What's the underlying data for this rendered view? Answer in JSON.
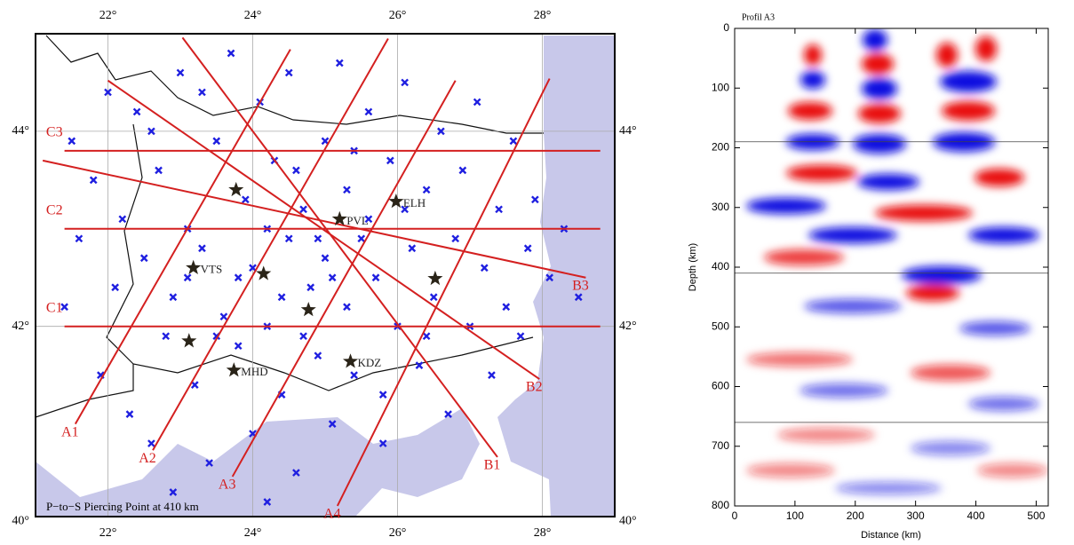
{
  "chart_data": [
    {
      "type": "map",
      "annotation": "P−to−S Piercing Point at 410 km",
      "xlim": [
        21,
        29
      ],
      "ylim": [
        40.05,
        45.0
      ],
      "xticks": [
        {
          "value": 22,
          "label": "22°"
        },
        {
          "value": 24,
          "label": "24°"
        },
        {
          "value": 26,
          "label": "26°"
        },
        {
          "value": 28,
          "label": "28°"
        }
      ],
      "yticks": [
        {
          "value": 40,
          "label": "40°"
        },
        {
          "value": 42,
          "label": "42°"
        },
        {
          "value": 44,
          "label": "44°"
        }
      ],
      "grid": true,
      "points": {
        "color": "#1f1fe0",
        "lon": [
          21.4,
          21.6,
          21.8,
          21.9,
          22.1,
          22.2,
          22.3,
          22.4,
          22.5,
          22.6,
          22.7,
          22.8,
          22.9,
          23.0,
          23.1,
          23.2,
          23.3,
          23.4,
          23.5,
          23.6,
          23.7,
          23.8,
          23.9,
          24.0,
          24.0,
          24.1,
          24.2,
          24.3,
          24.4,
          24.5,
          24.5,
          24.6,
          24.7,
          24.8,
          24.9,
          25.0,
          25.0,
          25.1,
          25.2,
          25.3,
          25.3,
          25.4,
          25.5,
          25.6,
          25.7,
          25.8,
          25.9,
          26.0,
          26.1,
          26.2,
          26.3,
          26.4,
          26.5,
          26.6,
          26.7,
          26.8,
          26.9,
          27.0,
          27.1,
          27.2,
          27.3,
          27.4,
          27.5,
          27.6,
          27.7,
          27.8,
          27.9,
          28.1,
          28.3,
          28.5,
          21.5,
          22.0,
          22.6,
          23.3,
          24.6,
          25.4,
          24.2,
          24.9,
          25.6,
          24.4,
          25.1,
          23.8,
          26.1,
          24.7,
          23.5,
          22.9,
          24.2,
          26.4,
          25.8,
          23.1
        ],
        "lat": [
          42.2,
          42.9,
          43.5,
          41.5,
          42.4,
          43.1,
          41.1,
          44.2,
          42.7,
          40.8,
          43.6,
          41.9,
          42.3,
          44.6,
          43.0,
          41.4,
          42.8,
          40.6,
          43.9,
          42.1,
          44.8,
          41.8,
          43.3,
          42.6,
          40.9,
          44.3,
          42.0,
          43.7,
          41.3,
          42.9,
          44.6,
          40.5,
          43.2,
          42.4,
          41.7,
          43.9,
          42.7,
          41.0,
          44.7,
          42.2,
          43.4,
          41.5,
          42.9,
          44.2,
          42.5,
          40.8,
          43.7,
          42.0,
          44.5,
          42.8,
          41.6,
          43.4,
          42.3,
          44.0,
          41.1,
          42.9,
          43.6,
          42.0,
          44.3,
          42.6,
          41.5,
          43.2,
          42.2,
          43.9,
          41.9,
          42.8,
          43.3,
          42.5,
          43.0,
          42.3,
          43.9,
          44.4,
          44.0,
          44.4,
          43.6,
          43.8,
          43.0,
          42.9,
          43.1,
          42.3,
          42.5,
          42.5,
          43.2,
          41.9,
          41.9,
          40.3,
          40.2,
          41.9,
          41.3,
          42.5
        ]
      },
      "profile_color": "#d42020",
      "profiles": [
        {
          "name": "A1",
          "lon": [
            21.55,
            24.52
          ],
          "lat": [
            41.0,
            44.84
          ]
        },
        {
          "name": "A2",
          "lon": [
            22.62,
            25.87
          ],
          "lat": [
            40.73,
            44.95
          ]
        },
        {
          "name": "A3",
          "lon": [
            23.72,
            26.8
          ],
          "lat": [
            40.46,
            44.52
          ]
        },
        {
          "name": "A4",
          "lon": [
            25.17,
            28.1
          ],
          "lat": [
            40.16,
            44.54
          ]
        },
        {
          "name": "B1",
          "lon": [
            27.38,
            23.03
          ],
          "lat": [
            40.66,
            44.96
          ]
        },
        {
          "name": "B2",
          "lon": [
            27.96,
            22.0
          ],
          "lat": [
            41.46,
            44.52
          ]
        },
        {
          "name": "B3",
          "lon": [
            28.6,
            21.1
          ],
          "lat": [
            42.5,
            43.7
          ]
        },
        {
          "name": "C1",
          "lon": [
            21.4,
            28.8
          ],
          "lat": [
            42.0,
            42.0
          ]
        },
        {
          "name": "C2",
          "lon": [
            21.4,
            28.8
          ],
          "lat": [
            43.0,
            43.0
          ]
        },
        {
          "name": "C3",
          "lon": [
            21.4,
            28.8
          ],
          "lat": [
            43.8,
            43.8
          ]
        }
      ],
      "stations": [
        {
          "name": "VTS",
          "lon": 23.18,
          "lat": 42.6
        },
        {
          "name": "MHD",
          "lon": 23.74,
          "lat": 41.55
        },
        {
          "name": "KDZ",
          "lon": 25.35,
          "lat": 41.64
        },
        {
          "name": "PVL",
          "lon": 25.2,
          "lat": 43.1
        },
        {
          "name": "ELH",
          "lon": 25.98,
          "lat": 43.28
        },
        {
          "name": null,
          "lon": 24.15,
          "lat": 42.54
        },
        {
          "name": null,
          "lon": 24.77,
          "lat": 42.17
        },
        {
          "name": null,
          "lon": 23.12,
          "lat": 41.85
        },
        {
          "name": null,
          "lon": 26.52,
          "lat": 42.49
        },
        {
          "name": null,
          "lon": 23.77,
          "lat": 43.4
        }
      ]
    },
    {
      "type": "section",
      "title": "Profil A3",
      "x_label": "Distance (km)",
      "y_label": "Depth (km)",
      "xlim": [
        0,
        520
      ],
      "ylim": [
        0,
        800
      ],
      "xticks": [
        0,
        100,
        200,
        300,
        400,
        500
      ],
      "yticks": [
        0,
        100,
        200,
        300,
        400,
        500,
        600,
        700,
        800
      ],
      "horizons": [
        190,
        410,
        660
      ]
    }
  ]
}
